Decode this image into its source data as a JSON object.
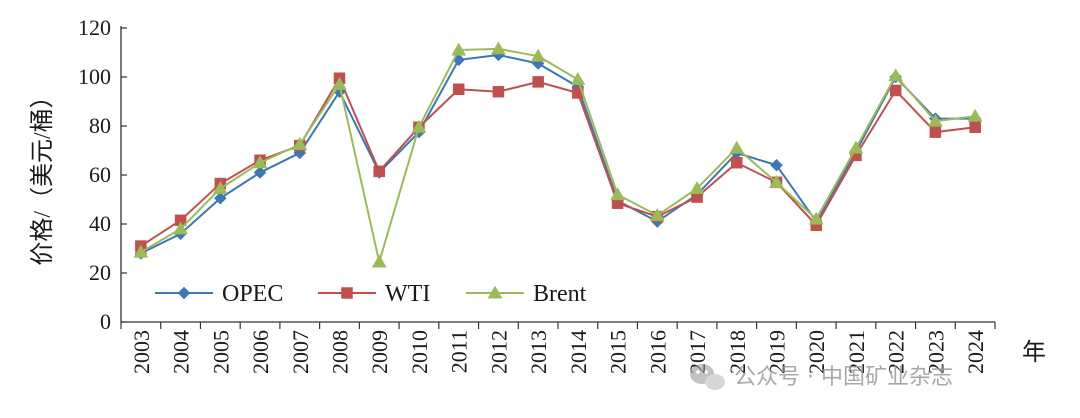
{
  "chart_data": {
    "type": "line",
    "xlabel": "年",
    "ylabel": "价格/（美元/桶）",
    "ylim": [
      0,
      120
    ],
    "yticks": [
      0,
      20,
      40,
      60,
      80,
      100,
      120
    ],
    "grid": false,
    "legend_position": "bottom-left, inside plot, horizontal",
    "categories": [
      "2003",
      "2004",
      "2005",
      "2006",
      "2007",
      "2008",
      "2009",
      "2010",
      "2011",
      "2012",
      "2013",
      "2014",
      "2015",
      "2016",
      "2017",
      "2018",
      "2019",
      "2020",
      "2021",
      "2022",
      "2023",
      "2024"
    ],
    "series": [
      {
        "name": "OPEC",
        "color": "#3b78b5",
        "marker": "diamond",
        "values": [
          28,
          36,
          50.5,
          61,
          69,
          94,
          61,
          77.5,
          107,
          109,
          105.5,
          96,
          49.5,
          41,
          52,
          69,
          64,
          41,
          69.5,
          100,
          83,
          83
        ]
      },
      {
        "name": "WTI",
        "color": "#c0504d",
        "marker": "square",
        "values": [
          31,
          41.5,
          56.5,
          66,
          72,
          99.5,
          61.5,
          79.5,
          95,
          94,
          98,
          93.5,
          48.5,
          43,
          51,
          65,
          57,
          39.5,
          68,
          94.5,
          77.5,
          79.5
        ]
      },
      {
        "name": "Brent",
        "color": "#9bbb59",
        "marker": "triangle",
        "values": [
          28.5,
          38,
          54.5,
          65,
          72.5,
          97,
          24.5,
          79.5,
          111,
          111.5,
          108.5,
          99,
          52,
          43.5,
          54.5,
          71,
          57,
          42,
          71,
          100.5,
          82,
          84
        ]
      }
    ]
  },
  "watermark": {
    "text": "公众号 · 中国矿业杂志",
    "icon": "wechat-icon"
  }
}
